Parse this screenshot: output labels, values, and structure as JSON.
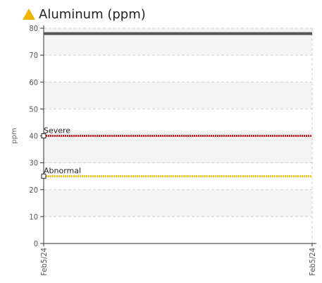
{
  "chart_data": {
    "type": "line",
    "title": "Aluminum (ppm)",
    "ylabel": "ppm",
    "xlabel": "",
    "ylim": [
      0,
      80
    ],
    "yticks": [
      0,
      10,
      20,
      30,
      40,
      50,
      60,
      70,
      80
    ],
    "x": [
      "Feb5/24",
      "Feb5/24"
    ],
    "series": [
      {
        "values": [
          78,
          78
        ],
        "color": "#555555"
      }
    ],
    "limits": [
      {
        "label": "Severe",
        "value": 40,
        "color": "#e02020"
      },
      {
        "label": "Abnormal",
        "value": 25,
        "color": "#e8c010"
      }
    ],
    "grid": true,
    "title_icon": "warning-triangle-icon",
    "title_icon_color": "#f0b400"
  }
}
